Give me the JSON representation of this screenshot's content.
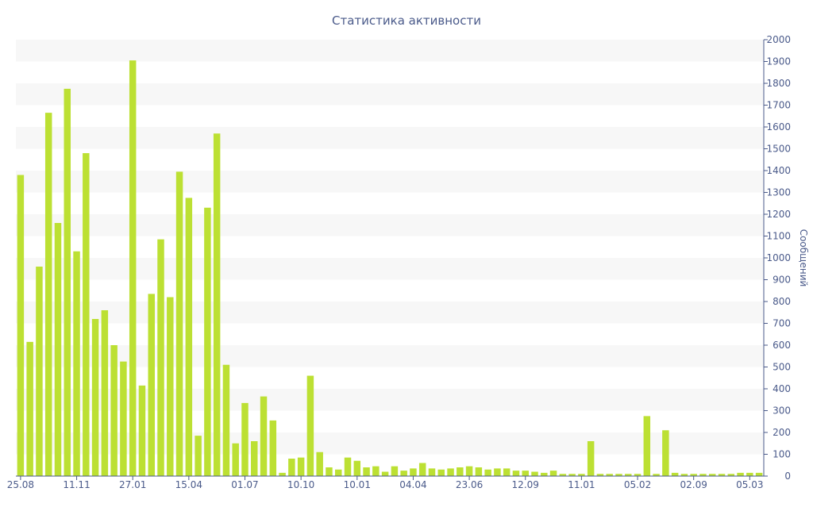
{
  "chart_data": {
    "type": "bar",
    "title": "Статистика активности",
    "xlabel": "",
    "ylabel": "Сообщений",
    "ylim": [
      0,
      2000
    ],
    "y_ticks": [
      0,
      100,
      200,
      300,
      400,
      500,
      600,
      700,
      800,
      900,
      1000,
      1100,
      1200,
      1300,
      1400,
      1500,
      1600,
      1700,
      1800,
      1900,
      2000
    ],
    "y_axis_side": "right",
    "grid": "alternating horizontal bands",
    "x_tick_labels": [
      {
        "label": "25.08",
        "index": 0
      },
      {
        "label": "11.11",
        "index": 6
      },
      {
        "label": "27.01",
        "index": 12
      },
      {
        "label": "15.04",
        "index": 18
      },
      {
        "label": "01.07",
        "index": 24
      },
      {
        "label": "10.10",
        "index": 30
      },
      {
        "label": "10.01",
        "index": 36
      },
      {
        "label": "04.04",
        "index": 42
      },
      {
        "label": "23.06",
        "index": 48
      },
      {
        "label": "12.09",
        "index": 54
      },
      {
        "label": "11.01",
        "index": 60
      },
      {
        "label": "05.02",
        "index": 66
      },
      {
        "label": "02.09",
        "index": 72
      },
      {
        "label": "05.03",
        "index": 78
      }
    ],
    "series": [
      {
        "values": [
          1380,
          615,
          960,
          1665,
          1160,
          1775,
          1030,
          1480,
          720,
          760,
          600,
          525,
          1905,
          415,
          835,
          1085,
          820,
          1395,
          1275,
          185,
          1230,
          1570,
          510,
          150,
          335,
          160,
          365,
          255,
          15,
          80,
          85,
          460,
          110,
          40,
          30,
          85,
          70,
          40,
          45,
          20,
          45,
          25,
          35,
          60,
          35,
          30,
          35,
          40,
          45,
          40,
          30,
          35,
          35,
          25,
          25,
          20,
          15,
          25,
          10,
          10,
          10,
          160,
          10,
          10,
          10,
          10,
          10,
          275,
          10,
          210,
          15,
          10,
          10,
          10,
          10,
          10,
          10,
          15,
          15,
          15
        ]
      }
    ]
  },
  "colors": {
    "bar": "#bce033",
    "axis_text": "#4a5a8a",
    "title_text": "#4a5a8a",
    "band": "#f7f7f7",
    "axis_line": "#4a5a8a"
  }
}
